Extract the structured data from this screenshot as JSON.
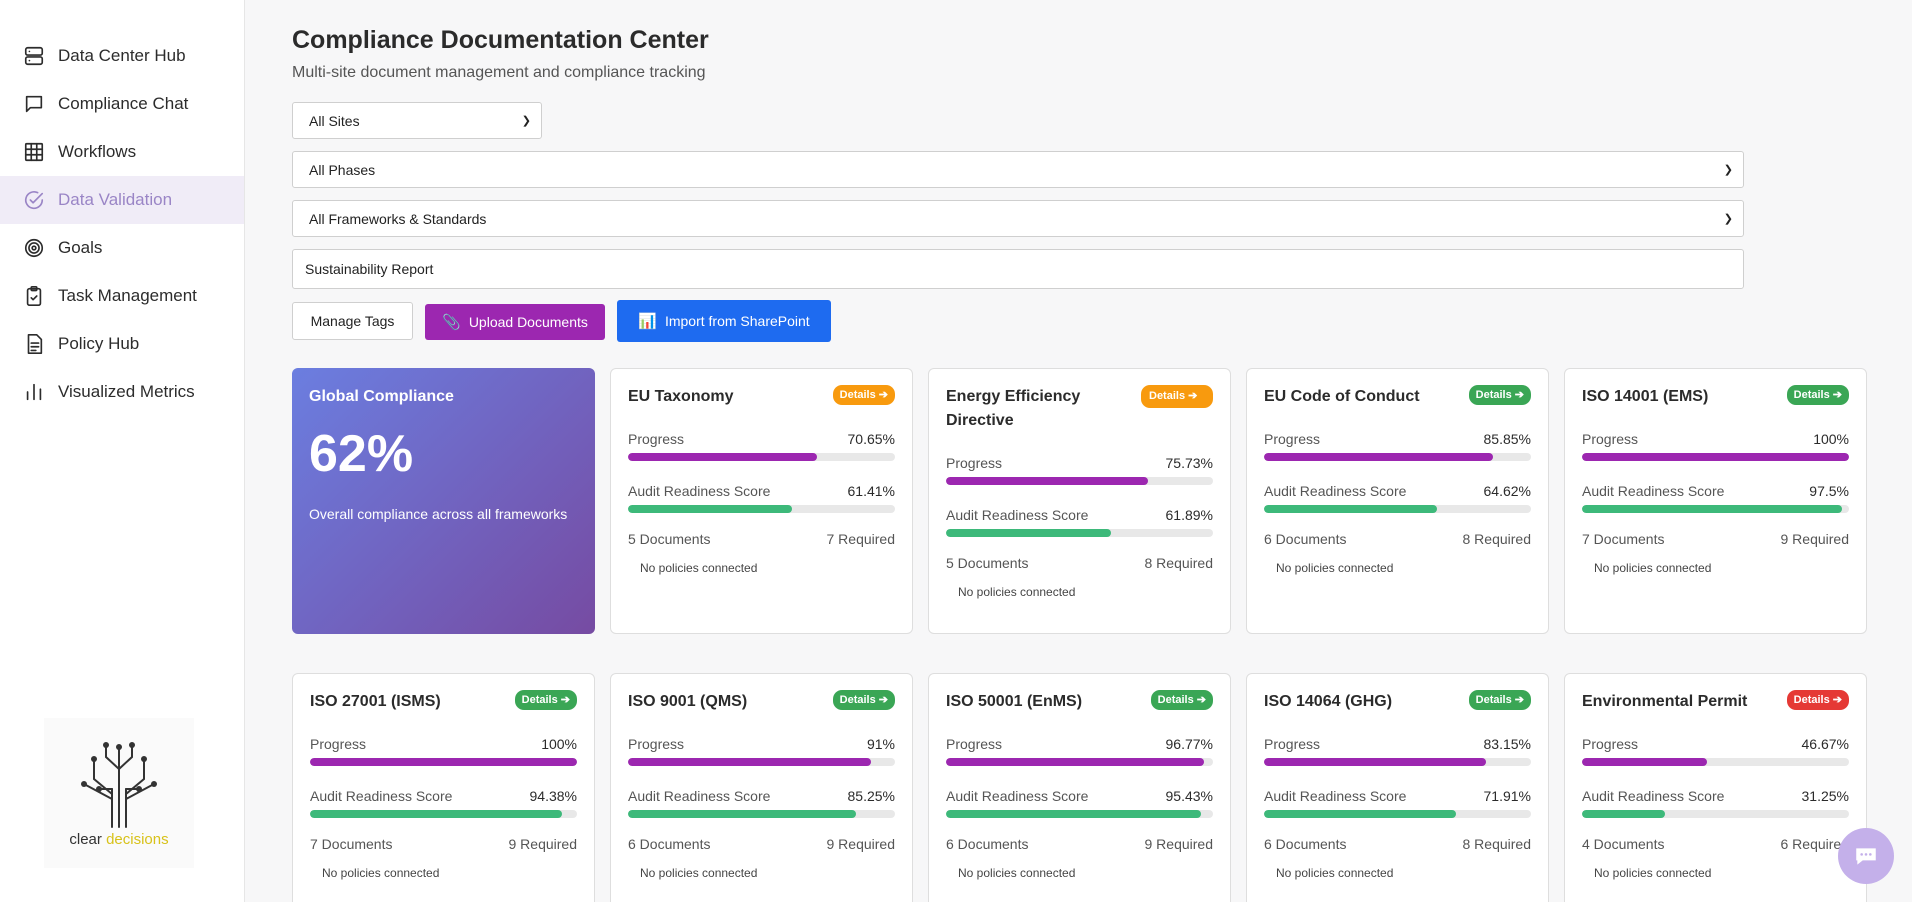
{
  "sidebar": {
    "items": [
      {
        "label": "Data Center Hub",
        "icon": "server-icon"
      },
      {
        "label": "Compliance Chat",
        "icon": "chat-icon"
      },
      {
        "label": "Workflows",
        "icon": "grid-icon"
      },
      {
        "label": "Data Validation",
        "icon": "check-circle-icon",
        "active": true
      },
      {
        "label": "Goals",
        "icon": "target-icon"
      },
      {
        "label": "Task Management",
        "icon": "clipboard-icon"
      },
      {
        "label": "Policy Hub",
        "icon": "document-icon"
      },
      {
        "label": "Visualized Metrics",
        "icon": "bar-chart-icon"
      }
    ],
    "logo": {
      "word1": "clear",
      "word2": "decisions"
    }
  },
  "header": {
    "title": "Compliance Documentation Center",
    "subtitle": "Multi-site document management and compliance tracking"
  },
  "filters": {
    "sites": "All Sites",
    "phases": "All Phases",
    "frameworks": "All Frameworks & Standards",
    "search_value": "Sustainability Report"
  },
  "actions": {
    "manage_tags": "Manage Tags",
    "upload": "Upload Documents",
    "import": "Import from SharePoint"
  },
  "global": {
    "title": "Global Compliance",
    "value": "62%",
    "desc": "Overall compliance across all frameworks"
  },
  "labels": {
    "progress": "Progress",
    "audit": "Audit Readiness Score",
    "no_policies": "No policies connected"
  },
  "colors": {
    "progress": "#9c27b0",
    "audit": "#3db97a",
    "badge_orange": "#f89a0e",
    "badge_green": "#3aa655",
    "badge_red": "#e53935"
  },
  "frameworks": [
    {
      "name": "EU Taxonomy",
      "badge": "Details ➔",
      "badge_color": "orange",
      "progress": "70.65%",
      "progress_val": 70.65,
      "audit": "61.41%",
      "audit_val": 61.41,
      "docs": "5 Documents",
      "required": "7 Required"
    },
    {
      "name": "Energy Efficiency Directive",
      "badge": "Details ➔",
      "badge_color": "orange",
      "progress": "75.73%",
      "progress_val": 75.73,
      "audit": "61.89%",
      "audit_val": 61.89,
      "docs": "5 Documents",
      "required": "8 Required",
      "tall": true
    },
    {
      "name": "EU Code of Conduct",
      "badge": "Details ➔",
      "badge_color": "green",
      "progress": "85.85%",
      "progress_val": 85.85,
      "audit": "64.62%",
      "audit_val": 64.62,
      "docs": "6 Documents",
      "required": "8 Required"
    },
    {
      "name": "ISO 14001 (EMS)",
      "badge": "Details ➔",
      "badge_color": "green",
      "progress": "100%",
      "progress_val": 100,
      "audit": "97.5%",
      "audit_val": 97.5,
      "docs": "7 Documents",
      "required": "9 Required"
    },
    {
      "name": "ISO 27001 (ISMS)",
      "badge": "Details ➔",
      "badge_color": "green",
      "progress": "100%",
      "progress_val": 100,
      "audit": "94.38%",
      "audit_val": 94.38,
      "docs": "7 Documents",
      "required": "9 Required"
    },
    {
      "name": "ISO 9001 (QMS)",
      "badge": "Details ➔",
      "badge_color": "green",
      "progress": "91%",
      "progress_val": 91,
      "audit": "85.25%",
      "audit_val": 85.25,
      "docs": "6 Documents",
      "required": "9 Required"
    },
    {
      "name": "ISO 50001 (EnMS)",
      "badge": "Details ➔",
      "badge_color": "green",
      "progress": "96.77%",
      "progress_val": 96.77,
      "audit": "95.43%",
      "audit_val": 95.43,
      "docs": "6 Documents",
      "required": "9 Required"
    },
    {
      "name": "ISO 14064 (GHG)",
      "badge": "Details ➔",
      "badge_color": "green",
      "progress": "83.15%",
      "progress_val": 83.15,
      "audit": "71.91%",
      "audit_val": 71.91,
      "docs": "6 Documents",
      "required": "8 Required"
    },
    {
      "name": "Environmental Permit",
      "badge": "Details ➔",
      "badge_color": "red",
      "progress": "46.67%",
      "progress_val": 46.67,
      "audit": "31.25%",
      "audit_val": 31.25,
      "docs": "4 Documents",
      "required": "6 Required"
    }
  ]
}
